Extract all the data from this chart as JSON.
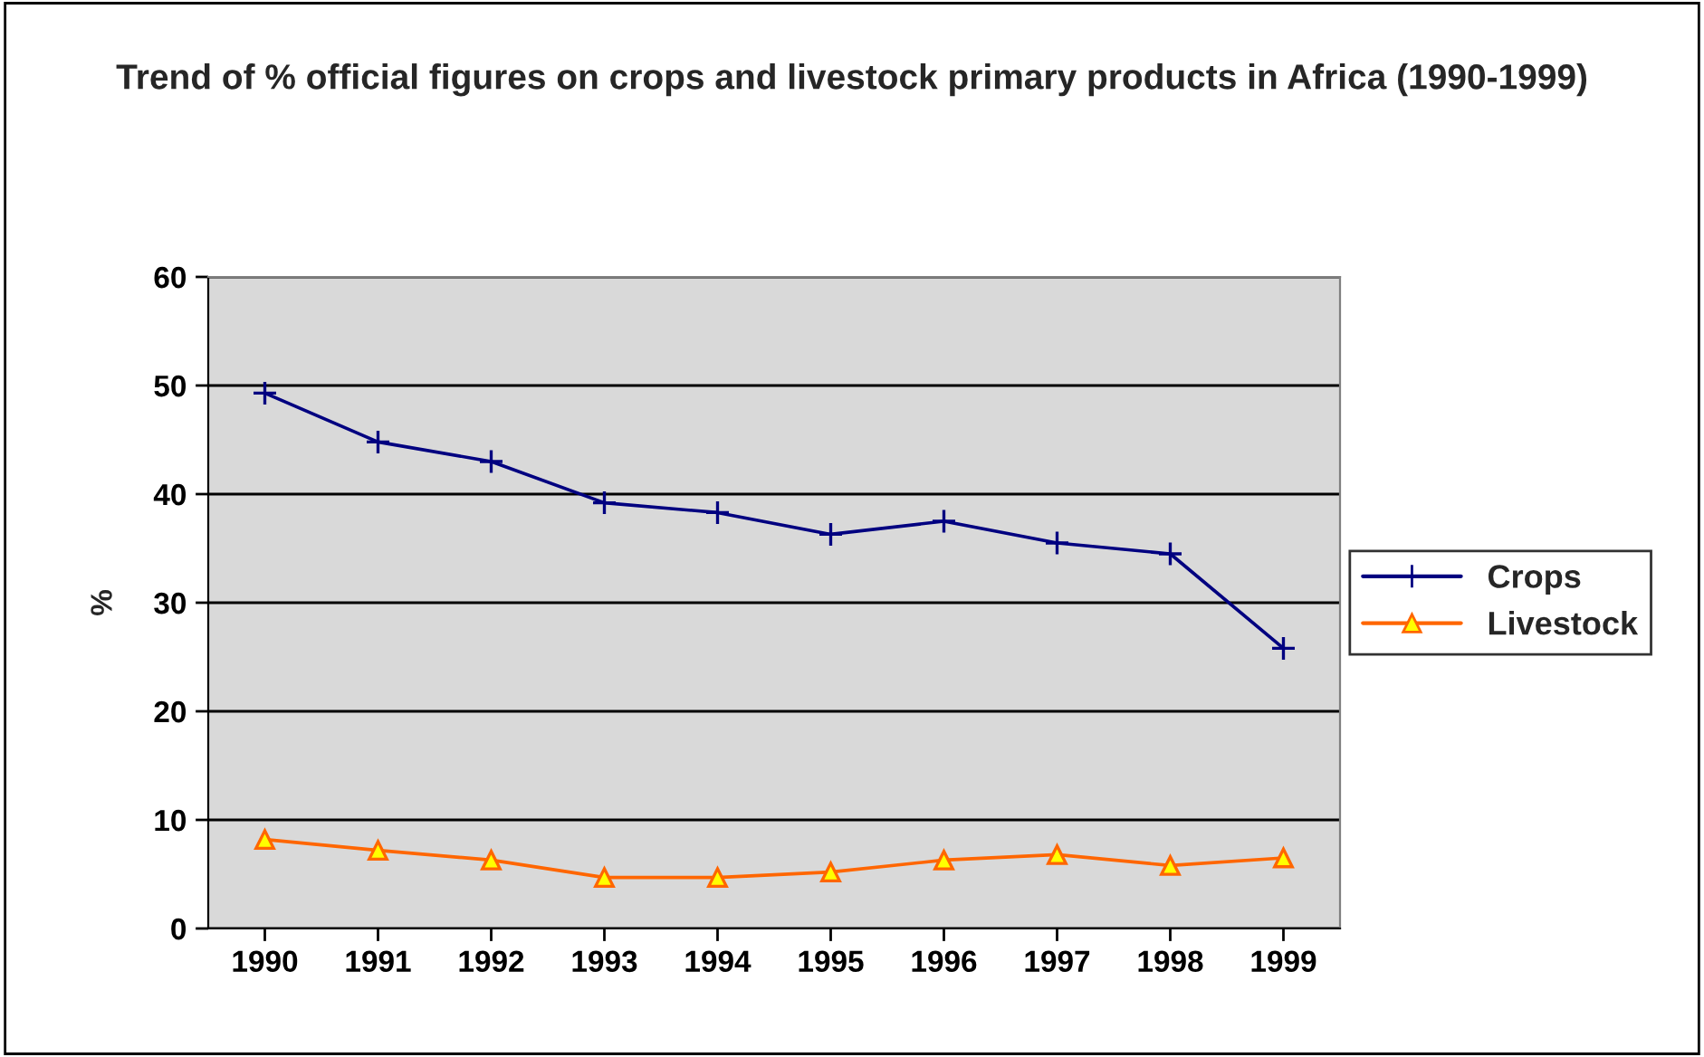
{
  "chart_data": {
    "type": "line",
    "title": "Trend of % official figures on crops and livestock primary products in Africa (1990-1999)",
    "ylabel": "%",
    "categories": [
      "1990",
      "1991",
      "1992",
      "1993",
      "1994",
      "1995",
      "1996",
      "1997",
      "1998",
      "1999"
    ],
    "series": [
      {
        "name": "Crops",
        "color": "#000080",
        "marker": "cross",
        "values": [
          49.3,
          44.8,
          43,
          39.2,
          38.3,
          36.3,
          37.5,
          35.5,
          34.5,
          25.8
        ]
      },
      {
        "name": "Livestock",
        "color": "#ff6600",
        "marker": "triangle",
        "values": [
          8.2,
          7.2,
          6.3,
          4.7,
          4.7,
          5.2,
          6.3,
          6.8,
          5.8,
          6.5
        ]
      }
    ],
    "ylim": [
      0,
      60
    ],
    "yticks": [
      0,
      10,
      20,
      30,
      40,
      50,
      60
    ],
    "grid": "y",
    "legend": "right",
    "line_style": "solid"
  }
}
